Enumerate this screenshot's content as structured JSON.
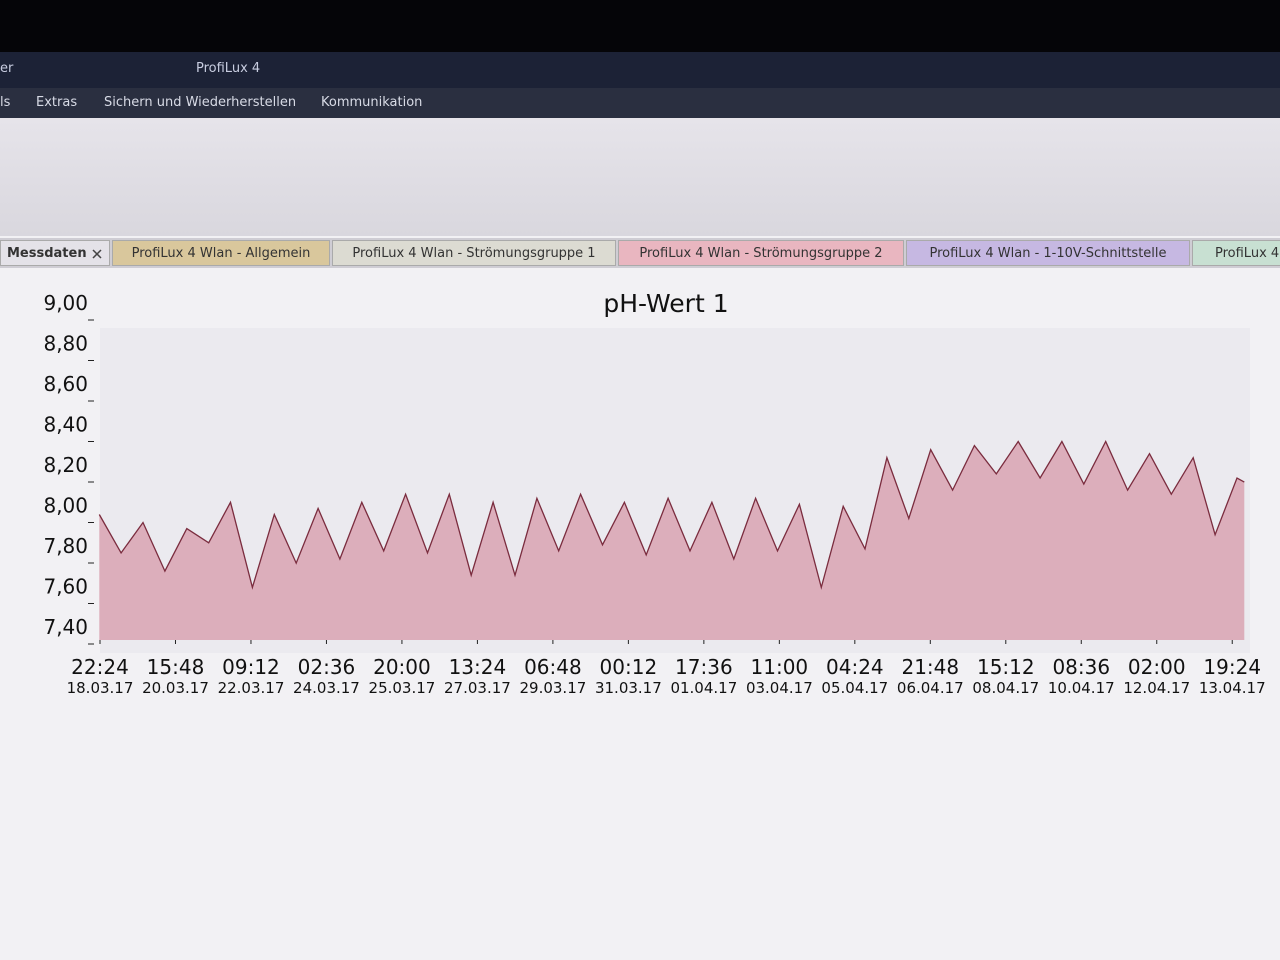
{
  "window": {
    "title_left": "er",
    "title": "ProfiLux 4",
    "menu": [
      "ls",
      "Extras",
      "Sichern und Wiederherstellen",
      "Kommunikation"
    ],
    "tabs": [
      "Messdaten",
      "ProfiLux 4 Wlan - Allgemein",
      "ProfiLux 4 Wlan - Strömungsgruppe 1",
      "ProfiLux 4 Wlan - Strömungsgruppe 2",
      "ProfiLux 4 Wlan - 1-10V-Schnittstelle",
      "ProfiLux 4"
    ]
  },
  "chart_data": {
    "type": "area",
    "title": "pH-Wert 1",
    "color": "#7a2c3e",
    "fill": "#d9a3b2",
    "grid": false,
    "x": [
      "2017-03-18T22:00",
      "2017-03-19T10:00",
      "2017-03-19T22:00",
      "2017-03-20T10:00",
      "2017-03-20T22:00",
      "2017-03-21T10:00",
      "2017-03-21T22:00",
      "2017-03-22T10:00",
      "2017-03-22T22:00",
      "2017-03-23T10:00",
      "2017-03-23T22:00",
      "2017-03-24T10:00",
      "2017-03-24T22:00",
      "2017-03-25T10:00",
      "2017-03-25T22:00",
      "2017-03-26T10:00",
      "2017-03-26T22:00",
      "2017-03-27T10:00",
      "2017-03-27T22:00",
      "2017-03-28T10:00",
      "2017-03-28T22:00",
      "2017-03-29T10:00",
      "2017-03-29T22:00",
      "2017-03-30T10:00",
      "2017-03-30T22:00",
      "2017-03-31T10:00",
      "2017-03-31T22:00",
      "2017-04-01T10:00",
      "2017-04-01T22:00",
      "2017-04-02T10:00",
      "2017-04-02T22:00",
      "2017-04-03T10:00",
      "2017-04-03T22:00",
      "2017-04-04T10:00",
      "2017-04-04T22:00",
      "2017-04-05T10:00",
      "2017-04-05T22:00",
      "2017-04-06T10:00",
      "2017-04-06T22:00",
      "2017-04-07T10:00",
      "2017-04-07T22:00",
      "2017-04-08T10:00",
      "2017-04-08T22:00",
      "2017-04-09T10:00",
      "2017-04-09T22:00",
      "2017-04-10T10:00",
      "2017-04-10T22:00",
      "2017-04-11T10:00",
      "2017-04-11T22:00",
      "2017-04-12T10:00",
      "2017-04-12T22:00",
      "2017-04-13T10:00",
      "2017-04-13T22:00",
      "2017-04-14T02:00"
    ],
    "values": [
      8.02,
      7.83,
      7.98,
      7.74,
      7.95,
      7.88,
      8.08,
      7.66,
      8.02,
      7.78,
      8.05,
      7.8,
      8.08,
      7.84,
      8.12,
      7.83,
      8.12,
      7.72,
      8.08,
      7.72,
      8.1,
      7.84,
      8.12,
      7.87,
      8.08,
      7.82,
      8.1,
      7.84,
      8.08,
      7.8,
      8.1,
      7.84,
      8.07,
      7.66,
      8.06,
      7.85,
      8.3,
      8.0,
      8.34,
      8.14,
      8.36,
      8.22,
      8.38,
      8.2,
      8.38,
      8.17,
      8.38,
      8.14,
      8.32,
      8.12,
      8.3,
      7.92,
      8.2,
      8.18
    ],
    "xlim": [
      "2017-03-18T22:24",
      "2017-04-14T02:24"
    ],
    "xticks": [
      {
        "value": "2017-03-18T22:24",
        "label": "22:24",
        "sublabel": "18.03.17"
      },
      {
        "value": "2017-03-20T15:48",
        "label": "15:48",
        "sublabel": "20.03.17"
      },
      {
        "value": "2017-03-22T09:12",
        "label": "09:12",
        "sublabel": "22.03.17"
      },
      {
        "value": "2017-03-24T02:36",
        "label": "02:36",
        "sublabel": "24.03.17"
      },
      {
        "value": "2017-03-25T20:00",
        "label": "20:00",
        "sublabel": "25.03.17"
      },
      {
        "value": "2017-03-27T13:24",
        "label": "13:24",
        "sublabel": "27.03.17"
      },
      {
        "value": "2017-03-29T06:48",
        "label": "06:48",
        "sublabel": "29.03.17"
      },
      {
        "value": "2017-03-31T00:12",
        "label": "00:12",
        "sublabel": "31.03.17"
      },
      {
        "value": "2017-04-01T17:36",
        "label": "17:36",
        "sublabel": "01.04.17"
      },
      {
        "value": "2017-04-03T11:00",
        "label": "11:00",
        "sublabel": "03.04.17"
      },
      {
        "value": "2017-04-05T04:24",
        "label": "04:24",
        "sublabel": "05.04.17"
      },
      {
        "value": "2017-04-06T21:48",
        "label": "21:48",
        "sublabel": "06.04.17"
      },
      {
        "value": "2017-04-08T15:12",
        "label": "15:12",
        "sublabel": "08.04.17"
      },
      {
        "value": "2017-04-10T08:36",
        "label": "08:36",
        "sublabel": "10.04.17"
      },
      {
        "value": "2017-04-12T02:00",
        "label": "02:00",
        "sublabel": "12.04.17"
      },
      {
        "value": "2017-04-13T19:24",
        "label": "19:24",
        "sublabel": "13.04.17"
      }
    ],
    "ylim": [
      7.4,
      9.0
    ],
    "yticks": [
      {
        "value": 7.4,
        "label": "7,40"
      },
      {
        "value": 7.6,
        "label": "7,60"
      },
      {
        "value": 7.8,
        "label": "7,80"
      },
      {
        "value": 8.0,
        "label": "8,00"
      },
      {
        "value": 8.2,
        "label": "8,20"
      },
      {
        "value": 8.4,
        "label": "8,40"
      },
      {
        "value": 8.6,
        "label": "8,60"
      },
      {
        "value": 8.8,
        "label": "8,80"
      },
      {
        "value": 9.0,
        "label": "9,00"
      }
    ]
  }
}
